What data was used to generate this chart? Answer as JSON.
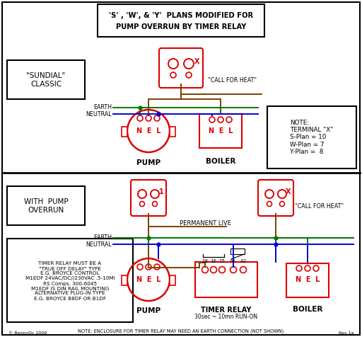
{
  "title_line1": "'S' , 'W', & 'Y'  PLANS MODIFIED FOR",
  "title_line2": "PUMP OVERRUN BY TIMER RELAY",
  "bg_color": "#ffffff",
  "wire_brown": "#7B3F00",
  "wire_green": "#007700",
  "wire_blue": "#0000DD",
  "red": "#DD0000",
  "black": "#000000",
  "note_text_top": "NOTE:\nTERMINAL \"X\"\nS-Plan = 10\nW-Plan = 7\nY-Plan =  8",
  "note_text_bottom": "TIMER RELAY MUST BE A\n\"TRUE OFF DELAY\" TYPE\nE.G. BROYCE CONTROL\nM1EDF 24VAC/DC//230VAC .5-10MI\nRS Comps. 300-6045\nM1EDF IS DIN RAIL MOUNTING\nALTERNATIVE PLUG-IN TYPE\nE.G. BROYCE B8DF OR B1DF",
  "bottom_note": "NOTE: ENCLOSURE FOR TIMER RELAY MAY NEED AN EARTH CONNECTION (NOT SHOWN)",
  "copyright": "© BennyDc 2009",
  "rev": "Rev 1a"
}
